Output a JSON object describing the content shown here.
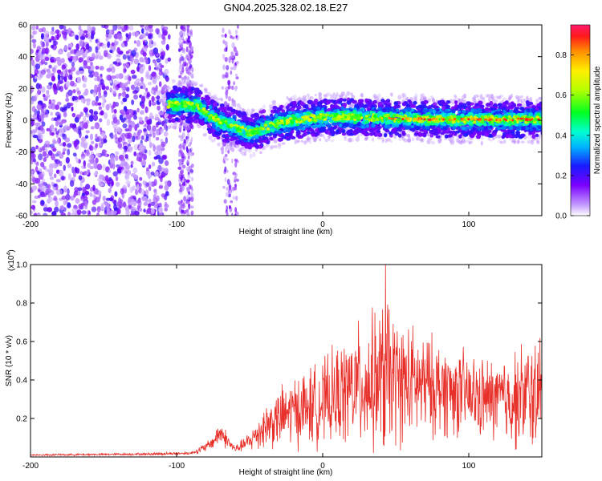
{
  "title": "GN04.2025.328.02.18.E27",
  "chart_data": [
    {
      "type": "heatmap",
      "xlabel": "Height of straight line (km)",
      "ylabel": "Frequency (Hz)",
      "xlim": [
        -200,
        150
      ],
      "ylim": [
        -60,
        60
      ],
      "xticks": [
        -200,
        -100,
        0,
        100
      ],
      "yticks": [
        -60,
        -40,
        -20,
        0,
        20,
        40,
        60
      ],
      "colorbar": {
        "label": "Normalized spectral amplitude",
        "range": [
          0,
          0.95
        ],
        "ticks": [
          0.0,
          0.2,
          0.4,
          0.6,
          0.8
        ]
      },
      "ridge": {
        "description": "dominant frequency track",
        "x": [
          -105,
          -95,
          -85,
          -80,
          -75,
          -70,
          -65,
          -60,
          -55,
          -50,
          -45,
          -40,
          -30,
          -20,
          -10,
          0,
          20,
          40,
          60,
          80,
          100,
          120,
          150
        ],
        "y": [
          10,
          10,
          9,
          5,
          2,
          -1,
          -3,
          -4,
          -6,
          -8,
          -7,
          -5,
          -2,
          0,
          1,
          2,
          2,
          1.5,
          1,
          0.5,
          0.5,
          0.5,
          0.5
        ]
      }
    },
    {
      "type": "line",
      "xlabel": "Height of straight line (km)",
      "ylabel": "SNR (10 * v/v)",
      "yscale_label": "(x10",
      "yscale_exp": "4",
      "xlim": [
        -200,
        150
      ],
      "ylim": [
        0,
        1.0
      ],
      "xticks": [
        -200,
        -100,
        0,
        100
      ],
      "yticks": [
        0.2,
        0.4,
        0.6,
        0.8,
        1.0
      ],
      "series": [
        {
          "name": "SNR",
          "color": "#e8302a",
          "envelope_x": [
            -200,
            -120,
            -90,
            -80,
            -75,
            -70,
            -65,
            -60,
            -55,
            -50,
            -45,
            -40,
            -30,
            -20,
            -10,
            0,
            10,
            20,
            30,
            40,
            43,
            50,
            60,
            70,
            80,
            90,
            100,
            110,
            120,
            130,
            140,
            150
          ],
          "envelope_mean": [
            0.01,
            0.015,
            0.02,
            0.05,
            0.08,
            0.13,
            0.08,
            0.04,
            0.06,
            0.08,
            0.12,
            0.16,
            0.2,
            0.24,
            0.26,
            0.28,
            0.32,
            0.36,
            0.38,
            0.4,
            0.42,
            0.4,
            0.38,
            0.37,
            0.36,
            0.34,
            0.32,
            0.3,
            0.3,
            0.3,
            0.32,
            0.33
          ],
          "envelope_amp": [
            0.005,
            0.008,
            0.01,
            0.03,
            0.04,
            0.08,
            0.05,
            0.02,
            0.04,
            0.06,
            0.1,
            0.14,
            0.18,
            0.22,
            0.24,
            0.26,
            0.3,
            0.36,
            0.4,
            0.45,
            0.55,
            0.4,
            0.36,
            0.32,
            0.3,
            0.28,
            0.26,
            0.25,
            0.26,
            0.3,
            0.34,
            0.36
          ],
          "peak_x": 43,
          "peak_y": 1.0
        }
      ]
    }
  ]
}
